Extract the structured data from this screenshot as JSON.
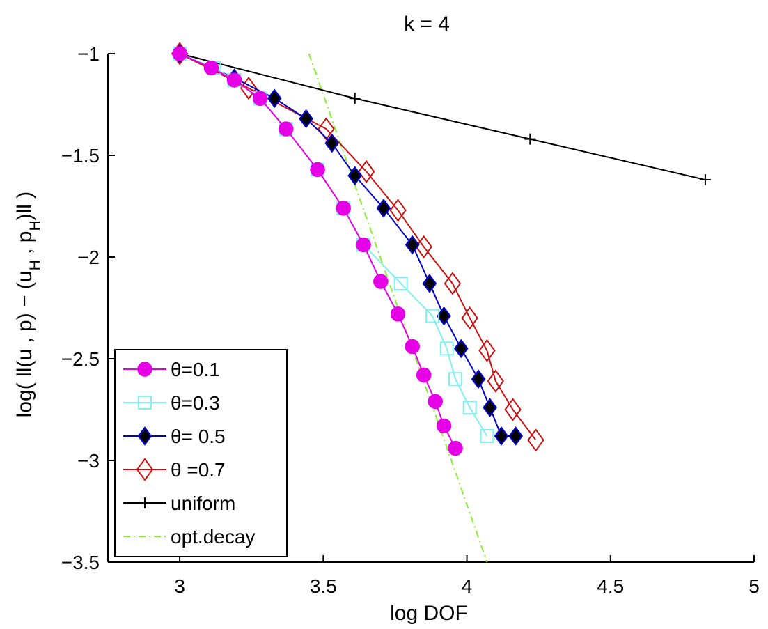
{
  "chart_data": {
    "type": "line",
    "title": "k = 4",
    "xlabel": "log DOF",
    "ylabel_parts": [
      "log( ll(u , p) − (u",
      "H",
      " , p",
      "H",
      ")ll )"
    ],
    "xlim": [
      2.75,
      5
    ],
    "ylim": [
      -3.5,
      -1
    ],
    "xticks": [
      3,
      3.5,
      4,
      4.5,
      5
    ],
    "xtick_labels": [
      "3",
      "3.5",
      "4",
      "4.5",
      "5"
    ],
    "yticks": [
      -1,
      -1.5,
      -2,
      -2.5,
      -3,
      -3.5
    ],
    "ytick_labels": [
      "−1",
      "−1.5",
      "−2",
      "−2.5",
      "−3",
      "−3.5"
    ],
    "grid": false,
    "legend_position": "bottom-left",
    "series": [
      {
        "name": "θ=0.1",
        "color": "#e600e6",
        "marker": "circle-filled",
        "x": [
          3.0,
          3.11,
          3.19,
          3.28,
          3.37,
          3.48,
          3.57,
          3.64,
          3.7,
          3.76,
          3.81,
          3.85,
          3.89,
          3.92,
          3.96
        ],
        "y": [
          -1.0,
          -1.07,
          -1.13,
          -1.22,
          -1.37,
          -1.57,
          -1.76,
          -1.94,
          -2.12,
          -2.28,
          -2.44,
          -2.58,
          -2.71,
          -2.83,
          -2.94
        ]
      },
      {
        "name": "θ=0.3",
        "color": "#80f0f0",
        "marker": "square-open",
        "x": [
          3.0,
          3.12,
          3.19,
          3.28,
          3.37,
          3.48,
          3.57,
          3.64,
          3.77,
          3.88,
          3.93,
          3.96,
          4.01,
          4.07
        ],
        "y": [
          -1.0,
          -1.07,
          -1.13,
          -1.22,
          -1.37,
          -1.57,
          -1.76,
          -1.94,
          -2.13,
          -2.29,
          -2.45,
          -2.6,
          -2.74,
          -2.88
        ]
      },
      {
        "name": "θ= 0.5",
        "color": "#0000c8",
        "marker": "diamond-filled",
        "x": [
          3.0,
          3.19,
          3.33,
          3.44,
          3.53,
          3.61,
          3.71,
          3.81,
          3.87,
          3.92,
          3.98,
          4.04,
          4.08,
          4.12,
          4.17
        ],
        "y": [
          -1.0,
          -1.12,
          -1.22,
          -1.32,
          -1.44,
          -1.6,
          -1.76,
          -1.94,
          -2.13,
          -2.29,
          -2.45,
          -2.6,
          -2.74,
          -2.88,
          -2.88
        ]
      },
      {
        "name": "θ =0.7",
        "color": "#cc1111",
        "marker": "diamond-open",
        "x": [
          3.0,
          3.24,
          3.51,
          3.65,
          3.76,
          3.85,
          3.95,
          4.01,
          4.07,
          4.1,
          4.16,
          4.24
        ],
        "y": [
          -1.0,
          -1.17,
          -1.37,
          -1.58,
          -1.77,
          -1.95,
          -2.13,
          -2.3,
          -2.46,
          -2.61,
          -2.75,
          -2.9
        ]
      },
      {
        "name": "uniform",
        "color": "#000000",
        "marker": "plus",
        "x": [
          3.0,
          3.61,
          4.22,
          4.83
        ],
        "y": [
          -1.0,
          -1.22,
          -1.42,
          -1.62
        ]
      },
      {
        "name": "opt.decay",
        "color": "#88ee33",
        "marker": "none",
        "dash": "dashdot",
        "x": [
          3.45,
          4.07
        ],
        "y": [
          -1.0,
          -3.5
        ]
      }
    ]
  }
}
